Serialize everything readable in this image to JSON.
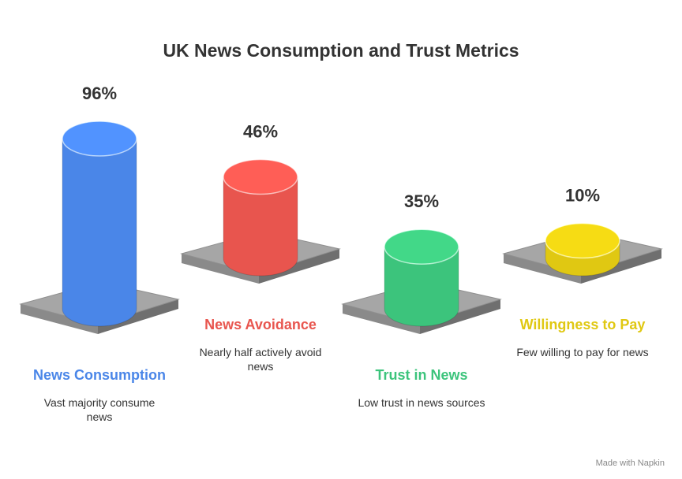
{
  "chart_data": {
    "type": "cylinder",
    "title": "UK News Consumption and Trust Metrics",
    "categories": [
      "News Consumption",
      "News Avoidance",
      "Trust in News",
      "Willingness to Pay"
    ],
    "descriptions": [
      "Vast majority consume news",
      "Nearly half actively avoid news",
      "Low trust in news sources",
      "Few willing to pay for news"
    ],
    "values": [
      96,
      46,
      35,
      10
    ],
    "value_labels": [
      "96%",
      "46%",
      "35%",
      "10%"
    ],
    "colors": [
      "#4a86e8",
      "#e8554e",
      "#3cc47c",
      "#e0c812"
    ],
    "footer": "Made with Napkin"
  }
}
